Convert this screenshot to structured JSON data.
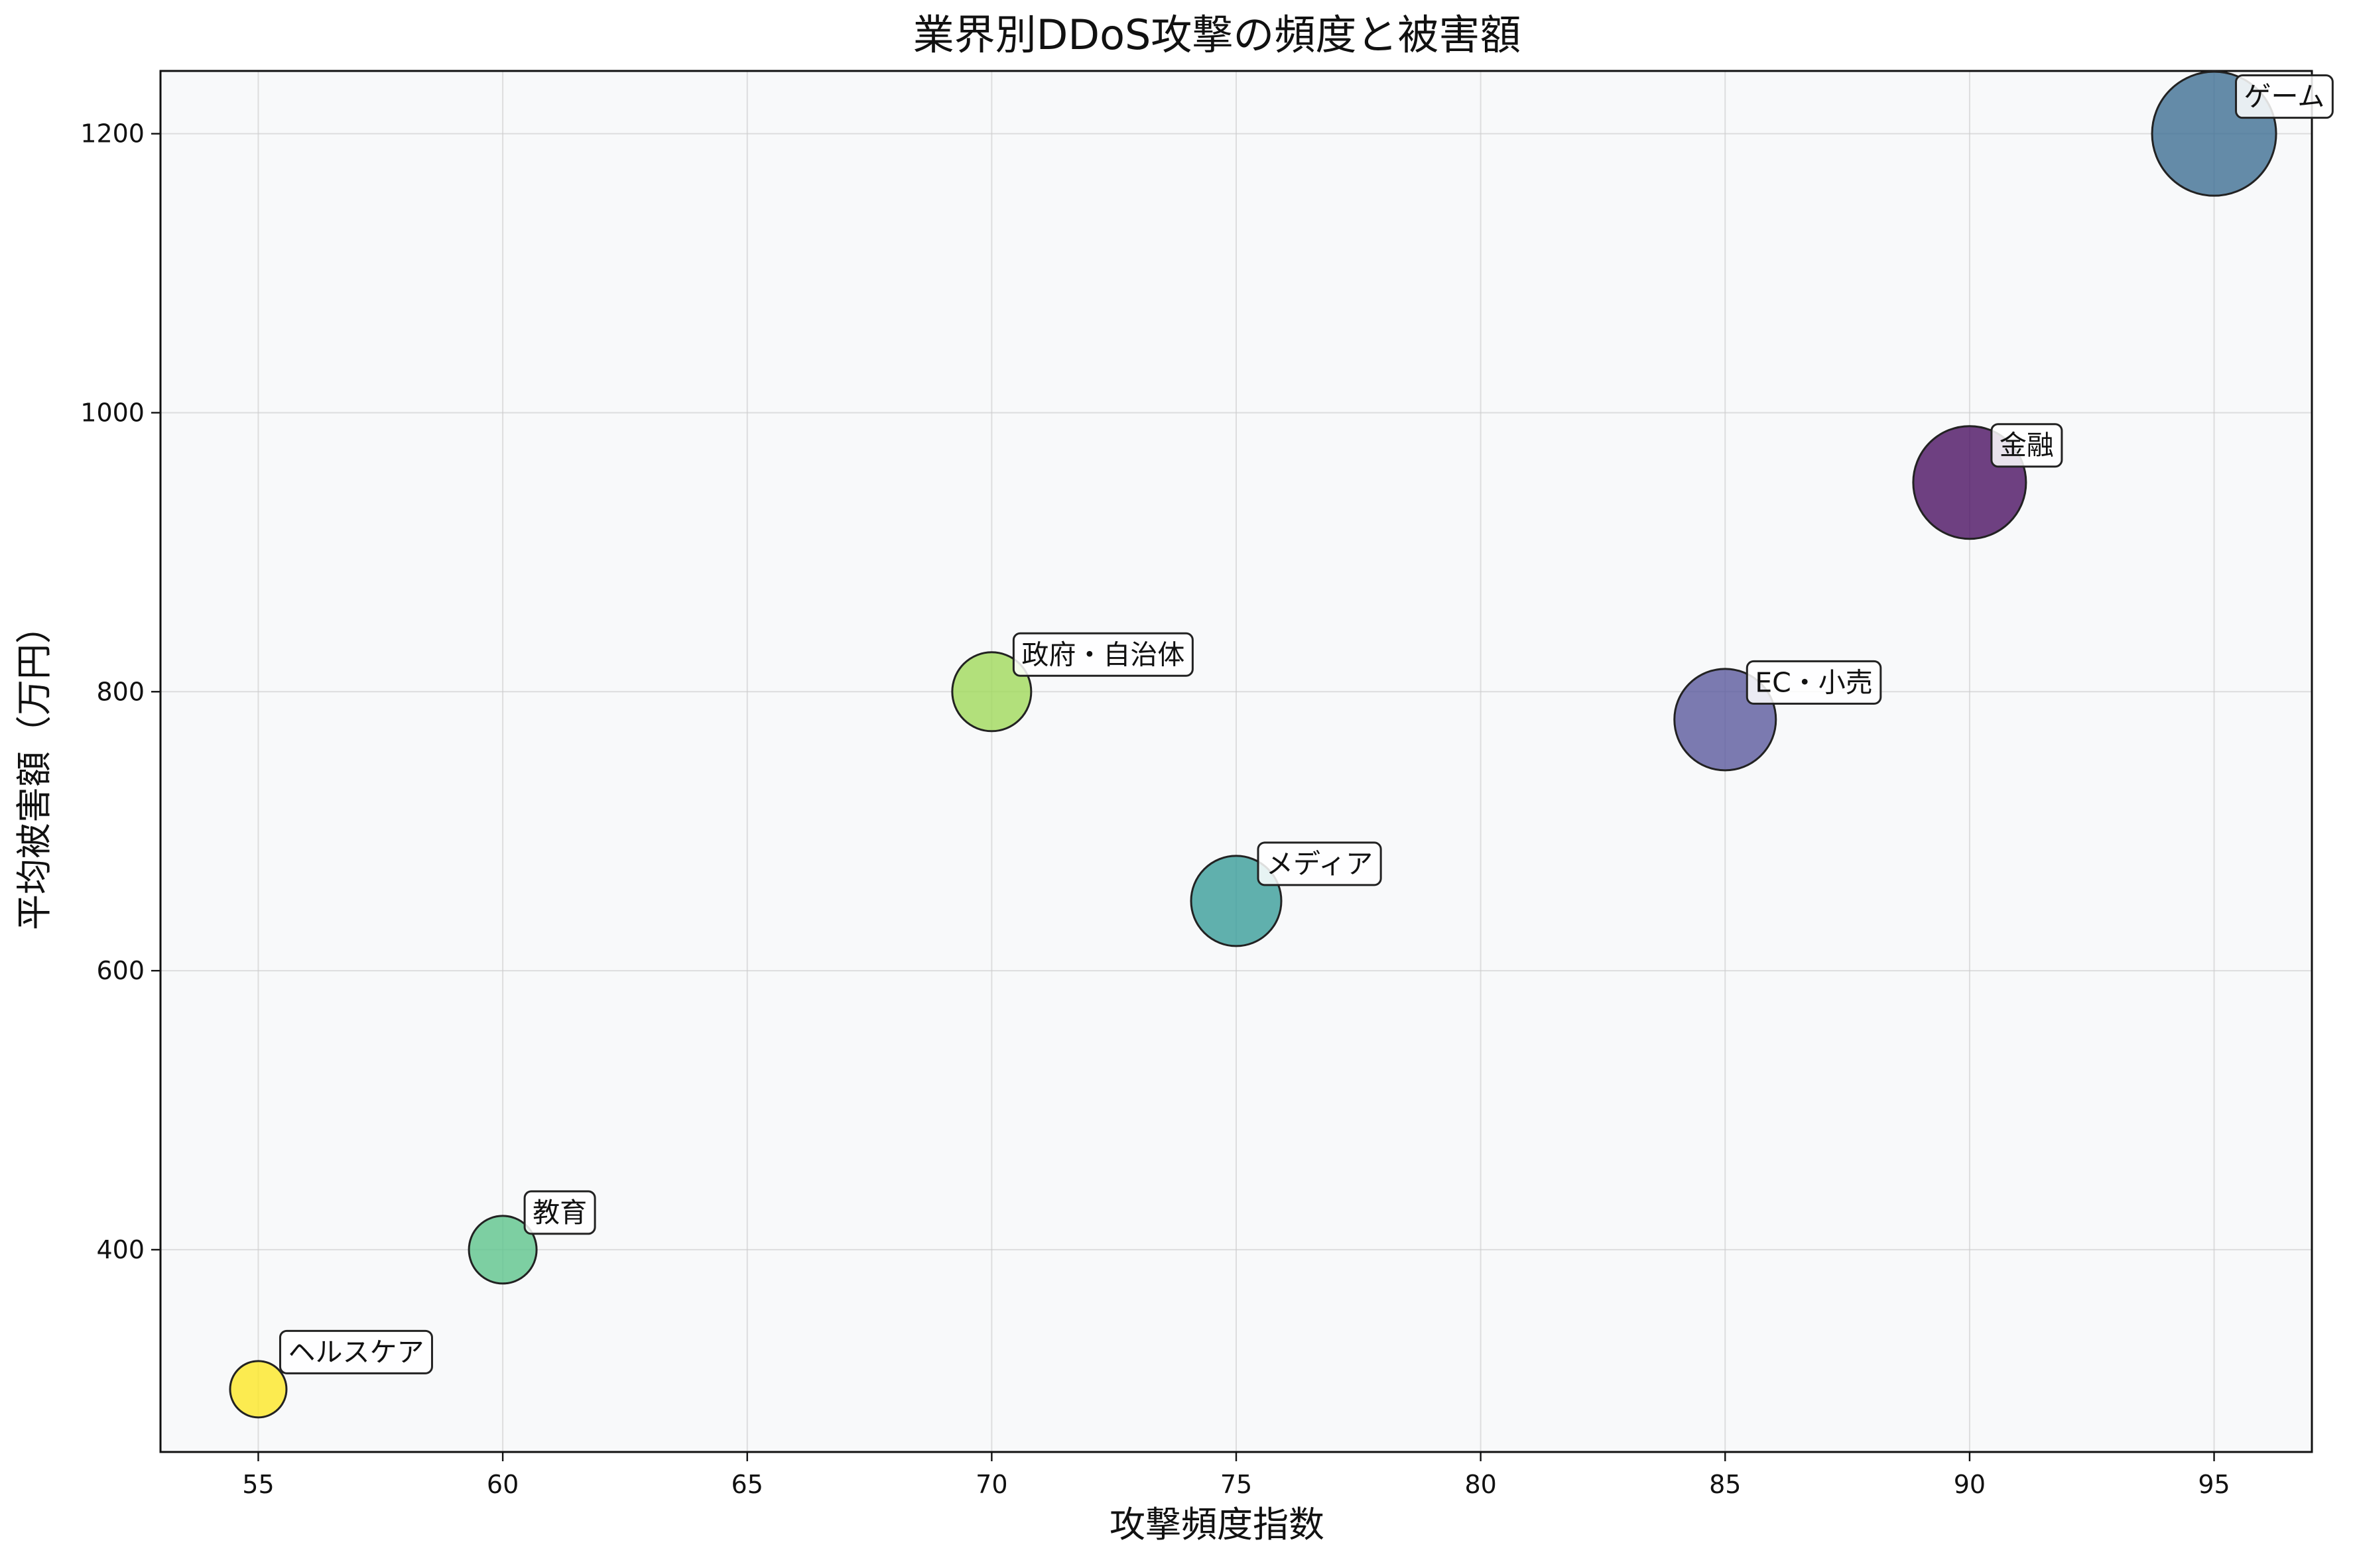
{
  "chart_data": {
    "type": "scatter",
    "title": "業界別DDoS攻撃の頻度と被害額",
    "xlabel": "攻撃頻度指数",
    "ylabel": "平均被害額（万円）",
    "xlim": [
      53,
      97
    ],
    "ylim": [
      255,
      1245
    ],
    "xticks": [
      "55",
      "60",
      "65",
      "70",
      "75",
      "80",
      "85",
      "90",
      "95"
    ],
    "yticks": [
      "400",
      "600",
      "800",
      "1000",
      "1200"
    ],
    "grid": true,
    "points": [
      {
        "label": "ヘルスケア",
        "x": 55,
        "y": 300,
        "size": 2.5,
        "color": "#fde725"
      },
      {
        "label": "教育",
        "x": 60,
        "y": 400,
        "size": 3.0,
        "color": "#5ec48c"
      },
      {
        "label": "政府・自治体",
        "x": 70,
        "y": 800,
        "size": 3.5,
        "color": "#a0da5b"
      },
      {
        "label": "メディア",
        "x": 75,
        "y": 650,
        "size": 4.0,
        "color": "#3a9d9a"
      },
      {
        "label": "EC・小売",
        "x": 85,
        "y": 780,
        "size": 4.5,
        "color": "#5b5a9e"
      },
      {
        "label": "金融",
        "x": 90,
        "y": 950,
        "size": 5.0,
        "color": "#4b1263"
      },
      {
        "label": "ゲーム",
        "x": 95,
        "y": 1200,
        "size": 5.5,
        "color": "#3e6f93"
      }
    ]
  }
}
